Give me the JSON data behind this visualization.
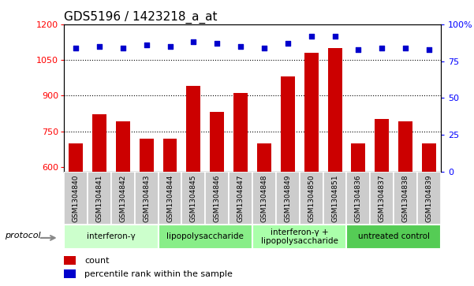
{
  "title": "GDS5196 / 1423218_a_at",
  "samples": [
    "GSM1304840",
    "GSM1304841",
    "GSM1304842",
    "GSM1304843",
    "GSM1304844",
    "GSM1304845",
    "GSM1304846",
    "GSM1304847",
    "GSM1304848",
    "GSM1304849",
    "GSM1304850",
    "GSM1304851",
    "GSM1304836",
    "GSM1304837",
    "GSM1304838",
    "GSM1304839"
  ],
  "counts": [
    700,
    820,
    790,
    720,
    720,
    940,
    830,
    910,
    700,
    980,
    1080,
    1100,
    700,
    800,
    790,
    700
  ],
  "percentile_ranks": [
    84,
    85,
    84,
    86,
    85,
    88,
    87,
    85,
    84,
    87,
    92,
    92,
    83,
    84,
    84,
    83
  ],
  "groups": [
    {
      "label": "interferon-γ",
      "start": 0,
      "end": 4,
      "color": "#ccffcc"
    },
    {
      "label": "lipopolysaccharide",
      "start": 4,
      "end": 8,
      "color": "#88ee88"
    },
    {
      "label": "interferon-γ +\nlipopolysaccharide",
      "start": 8,
      "end": 12,
      "color": "#aaffaa"
    },
    {
      "label": "untreated control",
      "start": 12,
      "end": 16,
      "color": "#55cc55"
    }
  ],
  "ylim_left": [
    580,
    1200
  ],
  "ylim_right": [
    0,
    100
  ],
  "yticks_left": [
    600,
    750,
    900,
    1050,
    1200
  ],
  "yticks_right": [
    0,
    25,
    50,
    75,
    100
  ],
  "bar_color": "#cc0000",
  "dot_color": "#0000cc",
  "bg_color": "#ffffff",
  "sample_box_color": "#cccccc",
  "title_fontsize": 11,
  "tick_fontsize": 7,
  "protocol_label": "protocol",
  "legend_count": "count",
  "legend_percentile": "percentile rank within the sample"
}
